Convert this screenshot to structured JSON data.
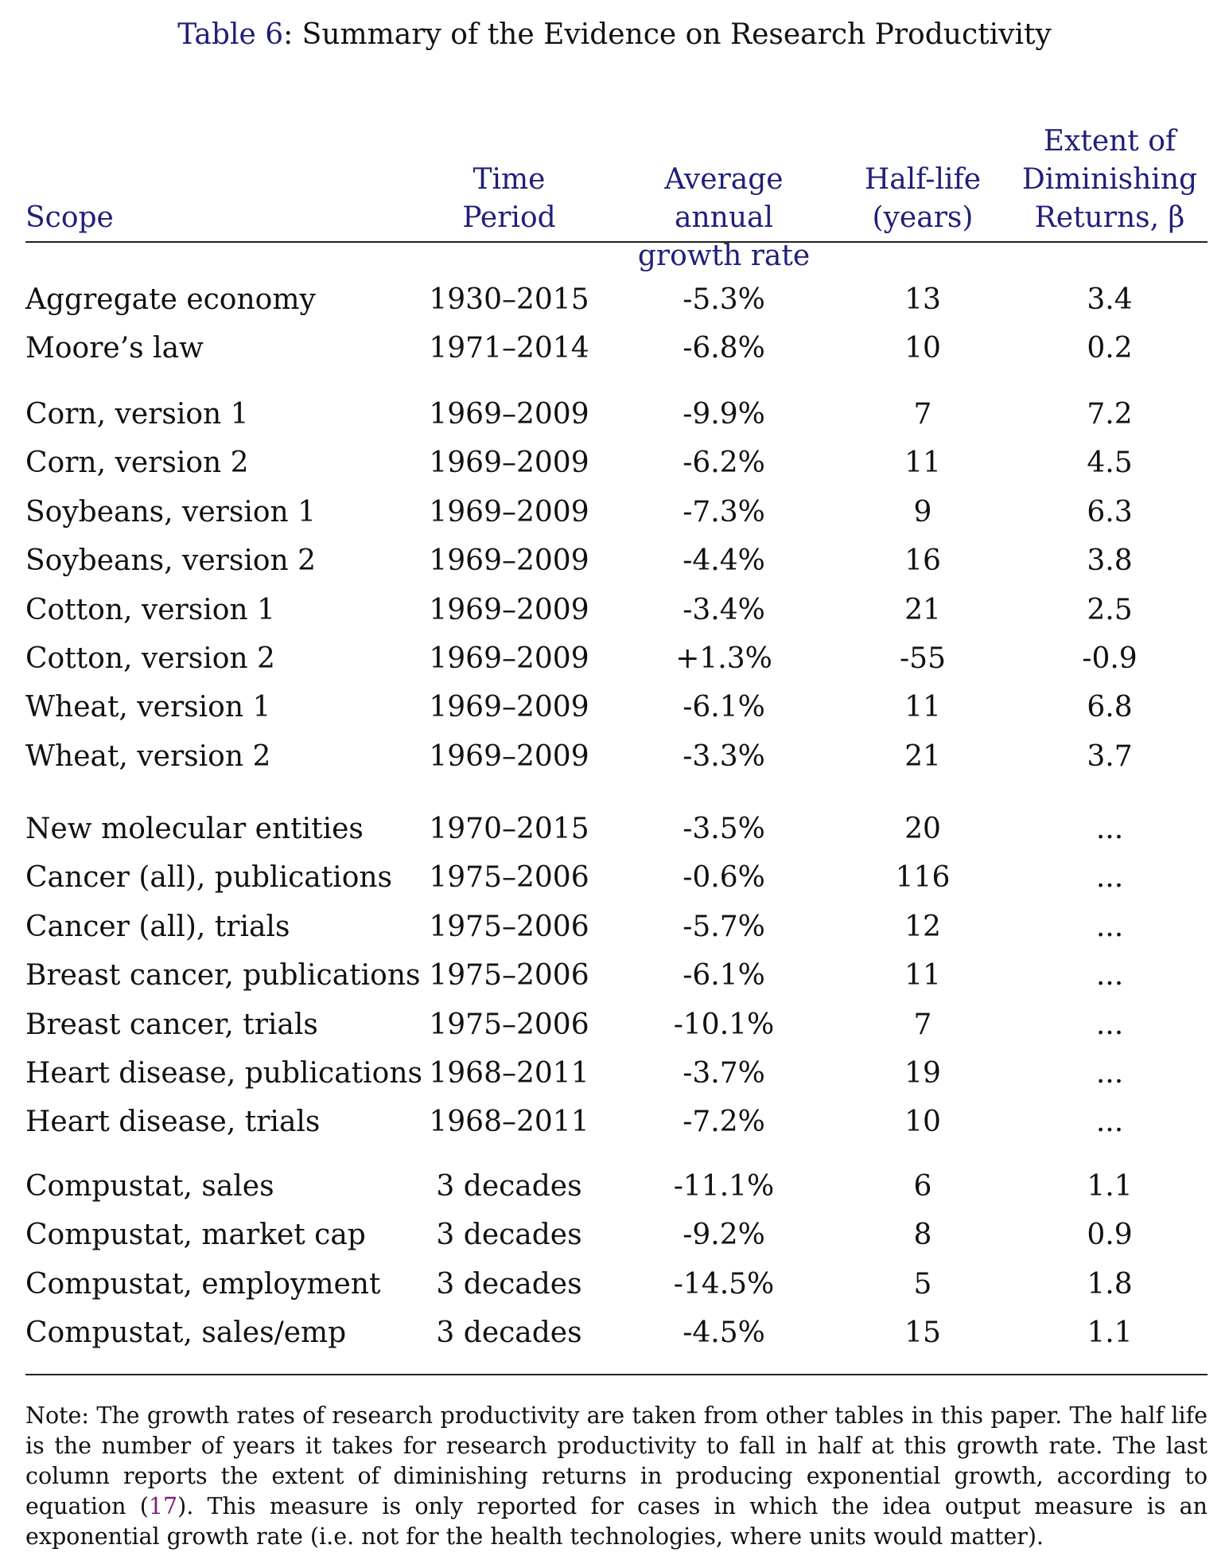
{
  "caption": {
    "label": "Table 6",
    "text": ": Summary of the Evidence on Research Productivity"
  },
  "headers": {
    "scope": "Scope",
    "period_l1": "Time",
    "period_l2": "Period",
    "growth_l1": "Average annual",
    "growth_l2": "growth rate",
    "half_l1": "Half-life",
    "half_l2": "(years)",
    "beta_l1": "Extent of",
    "beta_l2": "Diminishing",
    "beta_l3": "Returns, β"
  },
  "rows": [
    {
      "scope": "Aggregate economy",
      "period": "1930–2015",
      "growth": "-5.3%",
      "half": "13",
      "beta": "3.4"
    },
    {
      "scope": "Moore’s law",
      "period": "1971–2014",
      "growth": "-6.8%",
      "half": "10",
      "beta": "0.2"
    },
    {
      "scope": "Corn, version 1",
      "period": "1969–2009",
      "growth": "-9.9%",
      "half": "7",
      "beta": "7.2"
    },
    {
      "scope": "Corn, version 2",
      "period": "1969–2009",
      "growth": "-6.2%",
      "half": "11",
      "beta": "4.5"
    },
    {
      "scope": "Soybeans, version 1",
      "period": "1969–2009",
      "growth": "-7.3%",
      "half": "9",
      "beta": "6.3"
    },
    {
      "scope": "Soybeans, version 2",
      "period": "1969–2009",
      "growth": "-4.4%",
      "half": "16",
      "beta": "3.8"
    },
    {
      "scope": "Cotton, version 1",
      "period": "1969–2009",
      "growth": "-3.4%",
      "half": "21",
      "beta": "2.5"
    },
    {
      "scope": "Cotton, version 2",
      "period": "1969–2009",
      "growth": "+1.3%",
      "half": "-55",
      "beta": "-0.9"
    },
    {
      "scope": "Wheat, version 1",
      "period": "1969–2009",
      "growth": "-6.1%",
      "half": "11",
      "beta": "6.8"
    },
    {
      "scope": "Wheat, version 2",
      "period": "1969–2009",
      "growth": "-3.3%",
      "half": "21",
      "beta": "3.7"
    },
    {
      "scope": "New molecular entities",
      "period": "1970–2015",
      "growth": "-3.5%",
      "half": "20",
      "beta": "..."
    },
    {
      "scope": "Cancer (all), publications",
      "period": "1975–2006",
      "growth": "-0.6%",
      "half": "116",
      "beta": "..."
    },
    {
      "scope": "Cancer (all), trials",
      "period": "1975–2006",
      "growth": "-5.7%",
      "half": "12",
      "beta": "..."
    },
    {
      "scope": "Breast cancer, publications",
      "period": "1975–2006",
      "growth": "-6.1%",
      "half": "11",
      "beta": "..."
    },
    {
      "scope": "Breast cancer, trials",
      "period": "1975–2006",
      "growth": "-10.1%",
      "half": "7",
      "beta": "..."
    },
    {
      "scope": "Heart disease, publications",
      "period": "1968–2011",
      "growth": "-3.7%",
      "half": "19",
      "beta": "..."
    },
    {
      "scope": "Heart disease, trials",
      "period": "1968–2011",
      "growth": "-7.2%",
      "half": "10",
      "beta": "..."
    },
    {
      "scope": "Compustat, sales",
      "period": "3 decades",
      "growth": "-11.1%",
      "half": "6",
      "beta": "1.1"
    },
    {
      "scope": "Compustat, market cap",
      "period": "3 decades",
      "growth": "-9.2%",
      "half": "8",
      "beta": "0.9"
    },
    {
      "scope": "Compustat, employment",
      "period": "3 decades",
      "growth": "-14.5%",
      "half": "5",
      "beta": "1.8"
    },
    {
      "scope": "Compustat, sales/emp",
      "period": "3 decades",
      "growth": "-4.5%",
      "half": "15",
      "beta": "1.1"
    }
  ],
  "note": {
    "before_ref": "Note: The growth rates of research productivity are taken from other tables in this paper. The half life is the number of years it takes for research productivity to fall in half at this growth rate. The last column reports the extent of diminishing returns in producing exponential growth, according to equation (",
    "ref": "17",
    "after_ref": "). This measure is only reported for cases in which the idea output measure is an exponential growth rate (i.e. not for the health technologies, where units would matter)."
  }
}
